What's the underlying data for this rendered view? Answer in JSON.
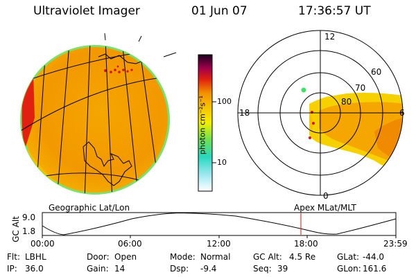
{
  "header": {
    "instrument": "Ultraviolet Imager",
    "date": "01 Jun 07",
    "time": "17:36:57 UT"
  },
  "colors": {
    "orange": "#f5a200",
    "light_orange": "#f8b400",
    "dark_orange": "#f08c00",
    "red": "#e01010",
    "yellow": "#f2f000",
    "green": "#3fe06a",
    "cyan": "#3ad0d8"
  },
  "colorbar": {
    "unit_label": "photon cm⁻²s⁻¹",
    "ticks": [
      "100",
      "10"
    ]
  },
  "geographic_panel": {
    "label": "Geographic Lat/Lon"
  },
  "polar_panel": {
    "label": "Apex  MLat/MLT",
    "mlt_labels": [
      "12",
      "18",
      "6",
      "0"
    ],
    "mlat_labels": [
      "60",
      "70",
      "80"
    ]
  },
  "altitude_plot": {
    "ylabel": "GC Alt",
    "yticks": [
      "9.0",
      "1.8"
    ],
    "xticks": [
      "00:00",
      "06:00",
      "12:00",
      "18:00",
      "23:59"
    ],
    "current_time_marker": "17:36:57"
  },
  "footer": {
    "row1": [
      {
        "label": "Flt:",
        "value": "LBHL"
      },
      {
        "label": "Door:",
        "value": "Open"
      },
      {
        "label": "Mode:",
        "value": "Normal"
      },
      {
        "label": "GC Alt:",
        "value": "4.5 Re"
      },
      {
        "label": "GLat:",
        "value": "-44.0"
      }
    ],
    "row2": [
      {
        "label": "IP:",
        "value": "36.0"
      },
      {
        "label": "Gain:",
        "value": "14"
      },
      {
        "label": "Dsp:",
        "value": "-9.4"
      },
      {
        "label": "Seq:",
        "value": "39"
      },
      {
        "label": "GLon:",
        "value": "161.6"
      }
    ]
  }
}
